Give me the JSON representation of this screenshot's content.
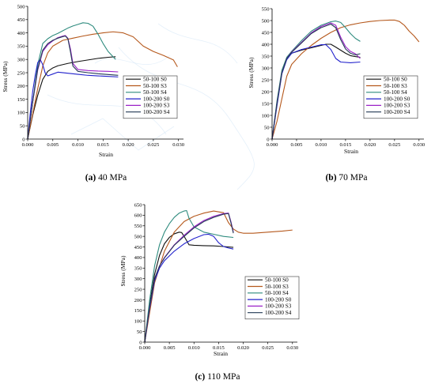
{
  "colors": {
    "50-100 S0": "#111111",
    "50-100 S3": "#b5581c",
    "50-100 S4": "#2e8b7e",
    "100-200 S0": "#2222cc",
    "100-200 S3": "#9a22c8",
    "100-200 S4": "#233a55",
    "axis": "#000000",
    "legend_border": "#333333"
  },
  "chart_data": [
    {
      "type": "line",
      "caption_letter": "(a)",
      "caption_rest": " 40 MPa",
      "xlabel": "Strain",
      "ylabel": "Stress (MPa)",
      "xlim": [
        0,
        0.031
      ],
      "ylim": [
        0,
        500
      ],
      "xticks": [
        0.0,
        0.005,
        0.01,
        0.015,
        0.02,
        0.025,
        0.03
      ],
      "xtick_labels": [
        "0.000",
        "0.005",
        "0.010",
        "0.015",
        "0.020",
        "0.025",
        "0.030"
      ],
      "yticks": [
        0,
        50,
        100,
        150,
        200,
        250,
        300,
        350,
        400,
        450,
        500
      ],
      "ytick_labels": [
        "0",
        "50",
        "100",
        "150",
        "200",
        "250",
        "300",
        "350",
        "400",
        "450",
        "500"
      ],
      "legend_position": "center-right",
      "series": [
        {
          "name": "50-100 S0",
          "x": [
            0,
            0.001,
            0.002,
            0.003,
            0.004,
            0.005,
            0.006,
            0.008,
            0.01,
            0.012,
            0.014,
            0.016,
            0.0175
          ],
          "y": [
            0,
            90,
            165,
            225,
            255,
            268,
            276,
            285,
            292,
            298,
            304,
            308,
            310
          ]
        },
        {
          "name": "50-100 S3",
          "x": [
            0,
            0.001,
            0.002,
            0.003,
            0.004,
            0.005,
            0.007,
            0.009,
            0.011,
            0.013,
            0.015,
            0.017,
            0.019,
            0.021,
            0.023,
            0.025,
            0.027,
            0.029,
            0.0298
          ],
          "y": [
            0,
            95,
            190,
            275,
            325,
            350,
            372,
            380,
            388,
            395,
            400,
            404,
            400,
            385,
            350,
            330,
            315,
            298,
            272
          ]
        },
        {
          "name": "50-100 S4",
          "x": [
            0,
            0.001,
            0.002,
            0.003,
            0.004,
            0.005,
            0.006,
            0.007,
            0.008,
            0.009,
            0.01,
            0.011,
            0.012,
            0.013,
            0.014,
            0.015,
            0.016,
            0.017,
            0.0175
          ],
          "y": [
            0,
            140,
            280,
            360,
            378,
            390,
            398,
            408,
            418,
            426,
            432,
            438,
            436,
            425,
            395,
            360,
            330,
            310,
            300
          ]
        },
        {
          "name": "100-200 S0",
          "x": [
            0,
            0.0005,
            0.001,
            0.0015,
            0.002,
            0.0025,
            0.003,
            0.0035,
            0.004,
            0.005,
            0.006,
            0.008,
            0.01,
            0.012,
            0.014,
            0.016,
            0.018
          ],
          "y": [
            0,
            95,
            180,
            240,
            288,
            300,
            280,
            248,
            238,
            245,
            252,
            248,
            244,
            240,
            238,
            236,
            234
          ]
        },
        {
          "name": "100-200 S3",
          "x": [
            0,
            0.001,
            0.002,
            0.003,
            0.004,
            0.005,
            0.006,
            0.007,
            0.0075,
            0.008,
            0.0085,
            0.009,
            0.01,
            0.012,
            0.014,
            0.016,
            0.018
          ],
          "y": [
            0,
            140,
            260,
            330,
            355,
            370,
            382,
            388,
            390,
            380,
            340,
            285,
            262,
            258,
            256,
            255,
            253
          ]
        },
        {
          "name": "100-200 S4",
          "x": [
            0,
            0.001,
            0.002,
            0.003,
            0.004,
            0.005,
            0.006,
            0.007,
            0.0075,
            0.008,
            0.0085,
            0.009,
            0.01,
            0.012,
            0.014,
            0.016,
            0.018
          ],
          "y": [
            0,
            140,
            265,
            335,
            360,
            372,
            380,
            386,
            388,
            378,
            330,
            275,
            255,
            250,
            246,
            243,
            240
          ]
        }
      ]
    },
    {
      "type": "line",
      "caption_letter": "(b)",
      "caption_rest": " 70 MPa",
      "xlabel": "Strain",
      "ylabel": "Stress (MPa)",
      "xlim": [
        0,
        0.031
      ],
      "ylim": [
        0,
        550
      ],
      "xticks": [
        0.0,
        0.005,
        0.01,
        0.015,
        0.02,
        0.025,
        0.03
      ],
      "xtick_labels": [
        "0.000",
        "0.005",
        "0.010",
        "0.015",
        "0.020",
        "0.025",
        "0.030"
      ],
      "yticks": [
        0,
        50,
        100,
        150,
        200,
        250,
        300,
        350,
        400,
        450,
        500,
        550
      ],
      "ytick_labels": [
        "0",
        "50",
        "100",
        "150",
        "200",
        "250",
        "300",
        "350",
        "400",
        "450",
        "500",
        "550"
      ],
      "legend_position": "center-right",
      "series": [
        {
          "name": "50-100 S0",
          "x": [
            0,
            0.001,
            0.002,
            0.003,
            0.004,
            0.006,
            0.008,
            0.01,
            0.011,
            0.012,
            0.013,
            0.014,
            0.015,
            0.016,
            0.017,
            0.018
          ],
          "y": [
            0,
            150,
            280,
            340,
            362,
            375,
            385,
            395,
            400,
            400,
            388,
            375,
            362,
            352,
            348,
            345
          ]
        },
        {
          "name": "50-100 S3",
          "x": [
            0,
            0.001,
            0.002,
            0.003,
            0.004,
            0.006,
            0.008,
            0.01,
            0.012,
            0.014,
            0.016,
            0.018,
            0.02,
            0.022,
            0.024,
            0.025,
            0.026,
            0.027,
            0.028,
            0.029,
            0.03
          ],
          "y": [
            0,
            75,
            170,
            265,
            315,
            360,
            395,
            425,
            450,
            470,
            482,
            490,
            496,
            500,
            502,
            502,
            496,
            480,
            455,
            435,
            410
          ]
        },
        {
          "name": "50-100 S4",
          "x": [
            0,
            0.001,
            0.002,
            0.003,
            0.004,
            0.006,
            0.008,
            0.01,
            0.012,
            0.013,
            0.014,
            0.015,
            0.016,
            0.017,
            0.018
          ],
          "y": [
            0,
            160,
            290,
            345,
            370,
            415,
            455,
            480,
            495,
            498,
            492,
            470,
            445,
            425,
            412
          ]
        },
        {
          "name": "100-200 S0",
          "x": [
            0,
            0.001,
            0.002,
            0.003,
            0.004,
            0.006,
            0.008,
            0.01,
            0.011,
            0.012,
            0.013,
            0.014,
            0.016,
            0.018
          ],
          "y": [
            0,
            140,
            275,
            335,
            362,
            378,
            388,
            398,
            398,
            378,
            340,
            325,
            322,
            325
          ]
        },
        {
          "name": "100-200 S3",
          "x": [
            0,
            0.001,
            0.002,
            0.003,
            0.004,
            0.006,
            0.008,
            0.01,
            0.012,
            0.013,
            0.014,
            0.015,
            0.016,
            0.017,
            0.018
          ],
          "y": [
            0,
            150,
            280,
            340,
            368,
            408,
            448,
            475,
            490,
            480,
            430,
            390,
            370,
            360,
            340
          ]
        },
        {
          "name": "100-200 S4",
          "x": [
            0,
            0.001,
            0.002,
            0.003,
            0.004,
            0.006,
            0.008,
            0.01,
            0.012,
            0.013,
            0.014,
            0.015,
            0.016,
            0.017,
            0.018
          ],
          "y": [
            0,
            150,
            280,
            340,
            366,
            405,
            445,
            470,
            485,
            470,
            420,
            380,
            362,
            355,
            360
          ]
        }
      ]
    },
    {
      "type": "line",
      "caption_letter": "(c)",
      "caption_rest": " 110 MPa",
      "xlabel": "Strain",
      "ylabel": "Stress (MPa)",
      "xlim": [
        0,
        0.031
      ],
      "ylim": [
        0,
        650
      ],
      "xticks": [
        0.0,
        0.005,
        0.01,
        0.015,
        0.02,
        0.025,
        0.03
      ],
      "xtick_labels": [
        "0.000",
        "0.005",
        "0.010",
        "0.015",
        "0.020",
        "0.025",
        "0.030"
      ],
      "yticks": [
        0,
        50,
        100,
        150,
        200,
        250,
        300,
        350,
        400,
        450,
        500,
        550,
        600,
        650
      ],
      "ytick_labels": [
        "0",
        "50",
        "100",
        "150",
        "200",
        "250",
        "300",
        "350",
        "400",
        "450",
        "500",
        "550",
        "600",
        "650"
      ],
      "legend_position": "center-right",
      "series": [
        {
          "name": "50-100 S0",
          "x": [
            0,
            0.001,
            0.002,
            0.003,
            0.004,
            0.005,
            0.006,
            0.007,
            0.0075,
            0.008,
            0.009,
            0.01,
            0.012,
            0.014,
            0.016,
            0.018
          ],
          "y": [
            0,
            180,
            320,
            410,
            465,
            495,
            512,
            520,
            518,
            500,
            460,
            458,
            456,
            455,
            452,
            448
          ]
        },
        {
          "name": "50-100 S3",
          "x": [
            0,
            0.002,
            0.004,
            0.006,
            0.008,
            0.01,
            0.012,
            0.014,
            0.016,
            0.017,
            0.018,
            0.019,
            0.02,
            0.022,
            0.025,
            0.028,
            0.03
          ],
          "y": [
            0,
            280,
            430,
            520,
            570,
            595,
            610,
            620,
            612,
            565,
            535,
            520,
            515,
            515,
            520,
            525,
            530
          ]
        },
        {
          "name": "50-100 S4",
          "x": [
            0,
            0.001,
            0.002,
            0.003,
            0.004,
            0.005,
            0.006,
            0.007,
            0.008,
            0.0085,
            0.009,
            0.01,
            0.012,
            0.014,
            0.016,
            0.018
          ],
          "y": [
            0,
            200,
            360,
            460,
            520,
            560,
            590,
            610,
            620,
            622,
            585,
            545,
            520,
            510,
            500,
            495
          ]
        },
        {
          "name": "100-200 S0",
          "x": [
            0,
            0.001,
            0.002,
            0.003,
            0.004,
            0.006,
            0.008,
            0.01,
            0.012,
            0.013,
            0.014,
            0.015,
            0.016,
            0.017,
            0.018
          ],
          "y": [
            0,
            160,
            290,
            350,
            385,
            430,
            465,
            490,
            508,
            510,
            500,
            470,
            452,
            445,
            440
          ]
        },
        {
          "name": "100-200 S3",
          "x": [
            0,
            0.001,
            0.002,
            0.003,
            0.004,
            0.006,
            0.008,
            0.01,
            0.012,
            0.014,
            0.016,
            0.017,
            0.0175,
            0.018
          ],
          "y": [
            0,
            170,
            300,
            360,
            400,
            460,
            505,
            545,
            575,
            595,
            608,
            610,
            570,
            520
          ]
        },
        {
          "name": "100-200 S4",
          "x": [
            0,
            0.001,
            0.002,
            0.003,
            0.004,
            0.006,
            0.008,
            0.01,
            0.012,
            0.014,
            0.016,
            0.017,
            0.0175,
            0.018
          ],
          "y": [
            0,
            170,
            300,
            360,
            398,
            458,
            500,
            540,
            570,
            590,
            605,
            608,
            565,
            515
          ]
        }
      ]
    }
  ]
}
